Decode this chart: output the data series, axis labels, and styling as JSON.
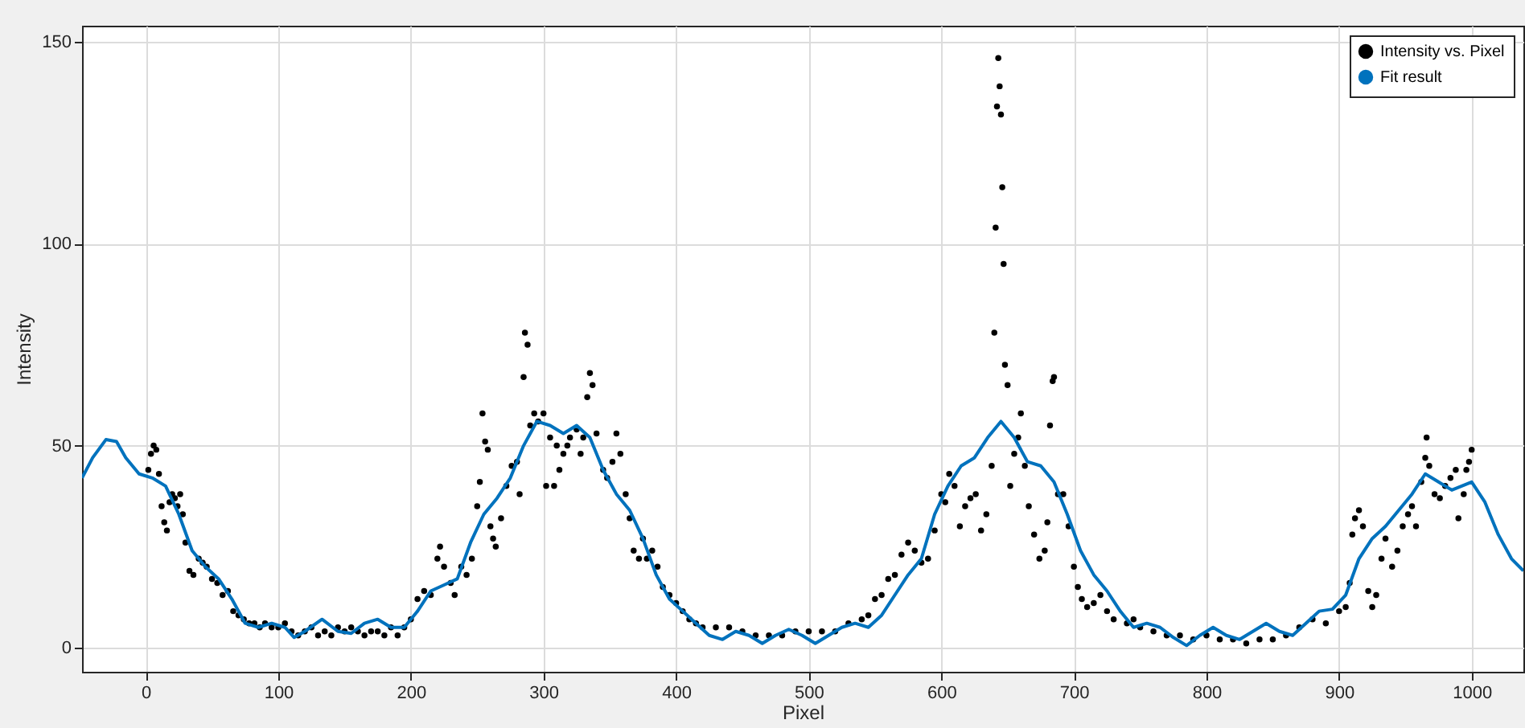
{
  "chart_data": {
    "type": "scatter",
    "xlabel": "Pixel",
    "ylabel": "Intensity",
    "xlim": [
      -48,
      1039
    ],
    "ylim": [
      -6,
      154
    ],
    "xticks": [
      0,
      100,
      200,
      300,
      400,
      500,
      600,
      700,
      800,
      900,
      1000
    ],
    "yticks": [
      0,
      50,
      100,
      150
    ],
    "grid": true,
    "legend": "top right",
    "series": [
      {
        "name": "Intensity vs. Pixel",
        "marker": "circle",
        "color": "#000000",
        "x": [
          2,
          4,
          6,
          8,
          10,
          12,
          14,
          16,
          18,
          20,
          22,
          24,
          26,
          28,
          30,
          33,
          36,
          40,
          43,
          46,
          50,
          54,
          58,
          62,
          66,
          70,
          74,
          78,
          82,
          86,
          90,
          95,
          100,
          105,
          110,
          115,
          120,
          125,
          130,
          135,
          140,
          145,
          150,
          155,
          160,
          165,
          170,
          175,
          180,
          185,
          190,
          195,
          200,
          205,
          210,
          215,
          220,
          222,
          225,
          230,
          233,
          238,
          242,
          246,
          250,
          252,
          254,
          256,
          258,
          260,
          262,
          264,
          268,
          272,
          276,
          280,
          282,
          285,
          286,
          288,
          290,
          293,
          296,
          300,
          302,
          305,
          308,
          310,
          312,
          315,
          318,
          320,
          325,
          328,
          330,
          333,
          335,
          337,
          340,
          345,
          348,
          352,
          355,
          358,
          362,
          365,
          368,
          372,
          375,
          378,
          382,
          386,
          390,
          395,
          400,
          405,
          410,
          415,
          420,
          430,
          440,
          450,
          460,
          470,
          480,
          490,
          500,
          510,
          520,
          530,
          540,
          545,
          550,
          555,
          560,
          565,
          570,
          575,
          580,
          585,
          590,
          595,
          600,
          603,
          606,
          610,
          614,
          618,
          622,
          626,
          630,
          634,
          638,
          640,
          641,
          642,
          643,
          644,
          645,
          646,
          647,
          648,
          650,
          652,
          655,
          658,
          660,
          663,
          666,
          670,
          674,
          678,
          680,
          682,
          684,
          685,
          688,
          692,
          696,
          700,
          703,
          706,
          710,
          715,
          720,
          725,
          730,
          740,
          745,
          750,
          760,
          770,
          780,
          790,
          800,
          810,
          820,
          830,
          840,
          850,
          860,
          870,
          880,
          890,
          900,
          905,
          908,
          910,
          912,
          915,
          918,
          922,
          925,
          928,
          932,
          935,
          940,
          944,
          948,
          952,
          955,
          958,
          962,
          965,
          966,
          968,
          972,
          976,
          980,
          984,
          988,
          990,
          994,
          996,
          998,
          1000
        ],
        "values": [
          44,
          48,
          50,
          49,
          43,
          35,
          31,
          29,
          36,
          38,
          37,
          35,
          38,
          33,
          26,
          19,
          18,
          22,
          21,
          20,
          17,
          16,
          13,
          14,
          9,
          8,
          7,
          6,
          6,
          5,
          6,
          5,
          5,
          6,
          4,
          3,
          4,
          5,
          3,
          4,
          3,
          5,
          4,
          5,
          4,
          3,
          4,
          4,
          3,
          5,
          3,
          5,
          7,
          12,
          14,
          13,
          22,
          25,
          20,
          16,
          13,
          20,
          18,
          22,
          35,
          41,
          58,
          51,
          49,
          30,
          27,
          25,
          32,
          40,
          45,
          46,
          38,
          67,
          78,
          75,
          55,
          58,
          56,
          58,
          40,
          52,
          40,
          50,
          44,
          48,
          50,
          52,
          54,
          48,
          52,
          62,
          68,
          65,
          53,
          44,
          42,
          46,
          53,
          48,
          38,
          32,
          24,
          22,
          27,
          22,
          24,
          20,
          15,
          13,
          11,
          9,
          7,
          6,
          5,
          5,
          5,
          4,
          3,
          3,
          3,
          4,
          4,
          4,
          4,
          6,
          7,
          8,
          12,
          13,
          17,
          18,
          23,
          26,
          24,
          21,
          22,
          29,
          38,
          36,
          43,
          40,
          30,
          35,
          37,
          38,
          29,
          33,
          45,
          78,
          104,
          134,
          146,
          139,
          132,
          114,
          95,
          70,
          65,
          40,
          48,
          52,
          58,
          45,
          35,
          28,
          22,
          24,
          31,
          55,
          66,
          67,
          38,
          38,
          30,
          20,
          15,
          12,
          10,
          11,
          13,
          9,
          7,
          6,
          7,
          5,
          4,
          3,
          3,
          2,
          3,
          2,
          2,
          1,
          2,
          2,
          3,
          5,
          7,
          6,
          9,
          10,
          16,
          28,
          32,
          34,
          30,
          14,
          10,
          13,
          22,
          27,
          20,
          24,
          30,
          33,
          35,
          30,
          41,
          47,
          52,
          45,
          38,
          37,
          40,
          42,
          44,
          32,
          38,
          44,
          46,
          49
        ]
      },
      {
        "name": "Fit result",
        "type": "line",
        "color": "#0072bd",
        "x": [
          -48,
          -40,
          -30,
          -22,
          -15,
          -5,
          5,
          15,
          25,
          35,
          45,
          55,
          65,
          75,
          85,
          95,
          105,
          112,
          120,
          133,
          145,
          155,
          165,
          175,
          185,
          195,
          205,
          215,
          225,
          235,
          245,
          255,
          265,
          275,
          285,
          295,
          305,
          315,
          325,
          335,
          345,
          355,
          365,
          375,
          385,
          395,
          405,
          415,
          425,
          435,
          445,
          455,
          465,
          475,
          485,
          495,
          505,
          515,
          525,
          535,
          545,
          555,
          565,
          575,
          585,
          595,
          605,
          615,
          625,
          635,
          645,
          655,
          665,
          675,
          685,
          695,
          705,
          715,
          725,
          735,
          745,
          755,
          765,
          775,
          785,
          795,
          805,
          815,
          825,
          835,
          845,
          855,
          865,
          875,
          885,
          895,
          905,
          915,
          925,
          935,
          945,
          955,
          965,
          975,
          985,
          1000,
          1010,
          1020,
          1030,
          1039
        ],
        "values": [
          42,
          47,
          51.5,
          51,
          47,
          43,
          42,
          40,
          33,
          24,
          20,
          17,
          12,
          6,
          5,
          6,
          5,
          2.5,
          4,
          7,
          4,
          3.5,
          6,
          7,
          5,
          5,
          9,
          14,
          15.5,
          17,
          26,
          33,
          37,
          42,
          50,
          56,
          55,
          53,
          55,
          52,
          44,
          38,
          34,
          27,
          18,
          12,
          9,
          6,
          3,
          2,
          4,
          3,
          1,
          3,
          4.5,
          3,
          1,
          3,
          5,
          6,
          5,
          8,
          13,
          18,
          22,
          33,
          40,
          45,
          47,
          52,
          56,
          52,
          46,
          45,
          41,
          33,
          24,
          18,
          14,
          9,
          5,
          6,
          5,
          2.5,
          0.5,
          3,
          5,
          3,
          2,
          4,
          6,
          4,
          3,
          6,
          9,
          9.5,
          13,
          22,
          27,
          30,
          34,
          38,
          43,
          41,
          39,
          41,
          36,
          28,
          22,
          19
        ]
      }
    ]
  }
}
